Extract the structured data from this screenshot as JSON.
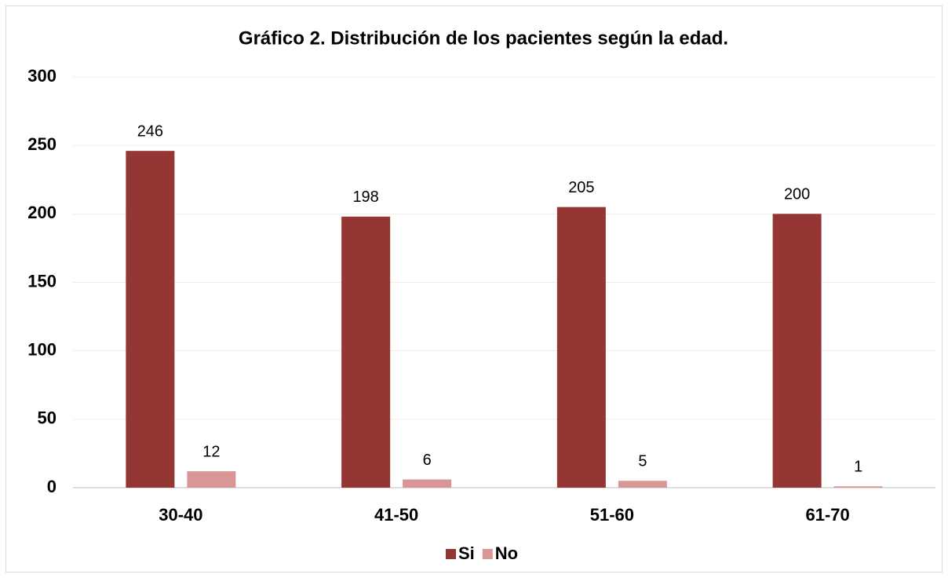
{
  "chart_data": {
    "type": "bar",
    "title": "Gráfico 2. Distribución de los pacientes según la edad.",
    "categories": [
      "30-40",
      "41-50",
      "51-60",
      "61-70"
    ],
    "series": [
      {
        "name": "Si",
        "color": "#943634",
        "values": [
          246,
          198,
          205,
          200
        ]
      },
      {
        "name": "No",
        "color": "#d99694",
        "values": [
          12,
          6,
          5,
          1
        ]
      }
    ],
    "ylim": [
      0,
      300
    ],
    "yticks": [
      0,
      50,
      100,
      150,
      200,
      250,
      300
    ],
    "grid": true,
    "legend": "bottom"
  }
}
